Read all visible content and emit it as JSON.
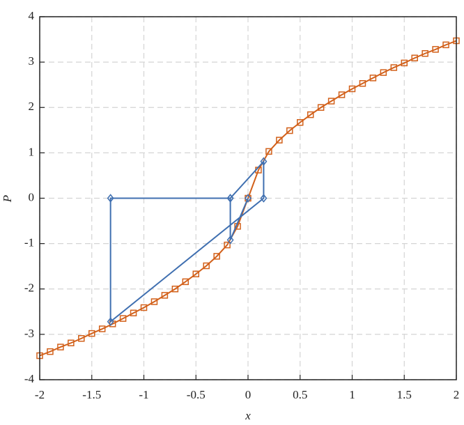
{
  "chart_data": {
    "type": "line",
    "xlabel": "x",
    "ylabel": "P",
    "xlim": [
      -2,
      2
    ],
    "xticks": [
      -2,
      -1.5,
      -1,
      -0.5,
      0,
      0.5,
      1,
      1.5,
      2
    ],
    "ylim": [
      -4,
      4
    ],
    "yticks": [
      -4,
      -3,
      -2,
      -1,
      0,
      1,
      2,
      3,
      4
    ],
    "grid": true,
    "series": [
      {
        "color": "#d2601a",
        "marker": "square",
        "x": [
          -2,
          -1.9,
          -1.8,
          -1.7,
          -1.6,
          -1.5,
          -1.4,
          -1.3,
          -1.2,
          -1.1,
          -1,
          -0.9,
          -0.8,
          -0.7,
          -0.6,
          -0.5,
          -0.4,
          -0.3,
          -0.2,
          -0.1,
          0,
          0.1,
          0.2,
          0.3,
          0.4,
          0.5,
          0.6,
          0.7,
          0.8,
          0.9,
          1,
          1.1,
          1.2,
          1.3,
          1.4,
          1.5,
          1.6,
          1.7,
          1.8,
          1.9,
          2
        ],
        "values": [
          -3.47,
          -3.38,
          -3.28,
          -3.19,
          -3.09,
          -2.98,
          -2.88,
          -2.77,
          -2.65,
          -2.53,
          -2.41,
          -2.28,
          -2.14,
          -2.0,
          -1.84,
          -1.67,
          -1.49,
          -1.28,
          -1.03,
          -0.62,
          0,
          0.62,
          1.03,
          1.28,
          1.49,
          1.67,
          1.84,
          2.0,
          2.14,
          2.28,
          2.41,
          2.53,
          2.65,
          2.77,
          2.88,
          2.98,
          3.09,
          3.19,
          3.28,
          3.38,
          3.47
        ]
      },
      {
        "color": "#3f6fb0",
        "marker": "diamond",
        "x": [
          -0.17,
          -1.32,
          -1.32,
          0.15,
          0.15,
          -0.17,
          -0.17,
          0
        ],
        "values": [
          0,
          0,
          -2.72,
          0,
          0.81,
          0,
          -0.92,
          0
        ]
      }
    ]
  }
}
